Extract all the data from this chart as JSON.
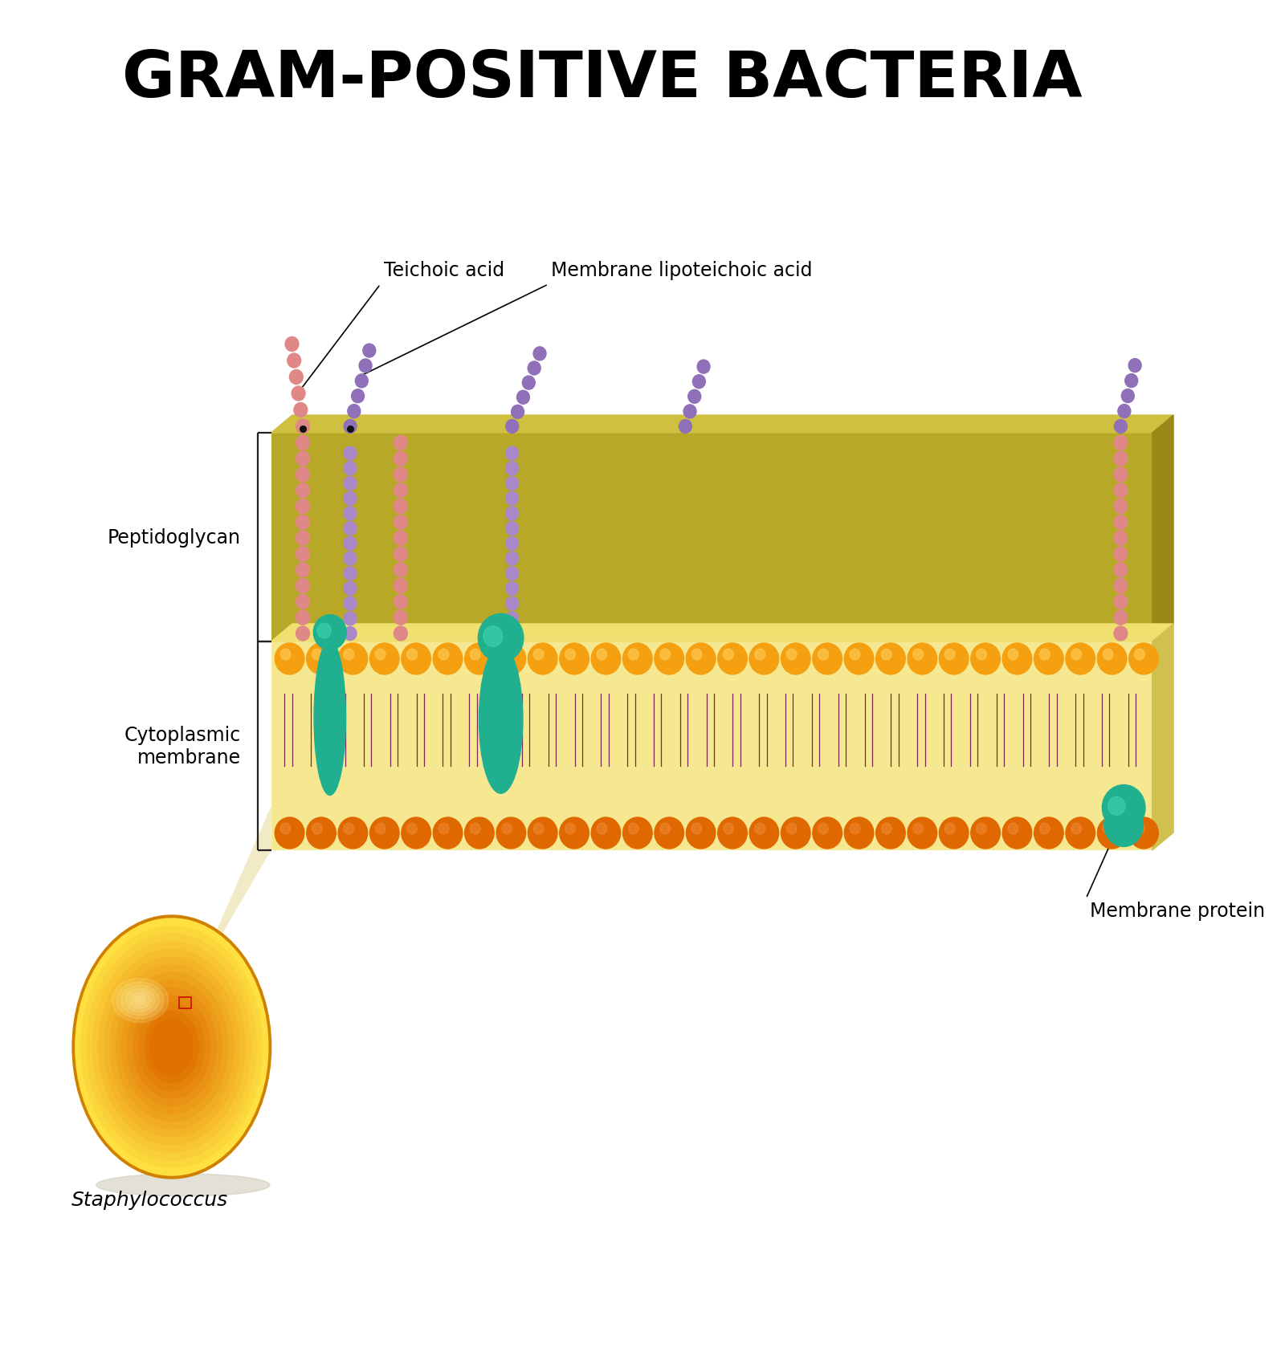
{
  "title": "GRAM-POSITIVE BACTERIA",
  "background_color": "#ffffff",
  "pg_color": "#b8a828",
  "pg_top_color": "#cfc040",
  "pg_right_color": "#9a8818",
  "mem_color": "#f5e890",
  "mem_top_color": "#f0e070",
  "mem_right_color": "#d0c050",
  "lipid_tail_color": "#7a2858",
  "bead_top_color": "#f5a010",
  "bead_top_highlight": "#ffd060",
  "bead_bot_color": "#e06800",
  "bead_bot_highlight": "#f09040",
  "protein_color": "#20b090",
  "protein_highlight": "#40d8b0",
  "teichoic_pink": "#e08888",
  "teichoic_purple": "#a888c8",
  "teichoic_purple2": "#9070b8",
  "anchor_color": "#111111",
  "bracket_color": "#222222",
  "wedge_color": "#f0e8c0",
  "bact_color": "#f0a010",
  "bact_light": "#ffe040",
  "bact_dark": "#e07000",
  "shadow_color": "#c8c4b0",
  "zoom_rect_color": "#cc2200",
  "label_color": "#000000",
  "labels": {
    "teichoic_acid": "Teichoic acid",
    "membrane_lipoteichoic_acid": "Membrane lipoteichoic acid",
    "peptidoglycan": "Peptidoglycan",
    "cytoplasmic_membrane": "Cytoplasmic\nmembrane",
    "membrane_protein": "Membrane protein",
    "staphylococcus": "Staphylococcus"
  }
}
